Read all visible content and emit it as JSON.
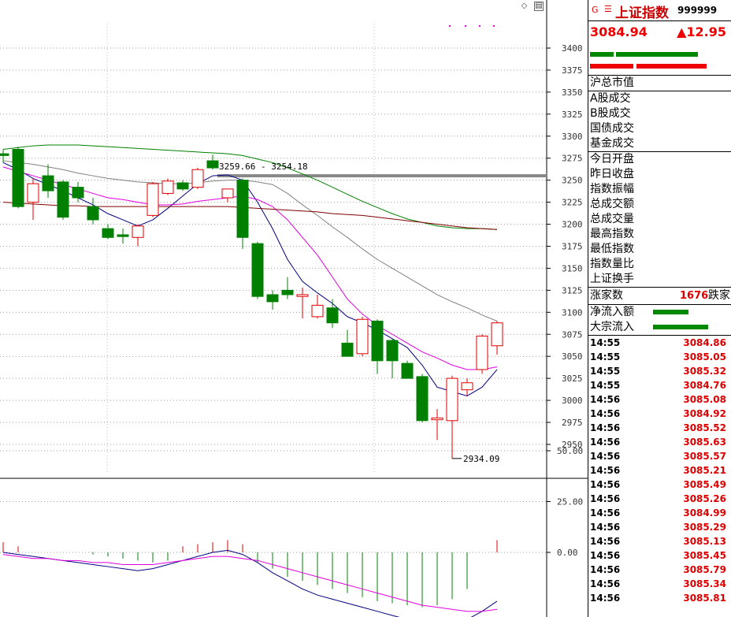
{
  "header": {
    "g_mark": "G",
    "menu_mark": "☰",
    "title": "上证指数",
    "code": "999999"
  },
  "quote": {
    "price": "3084.94",
    "change": "▲12.95"
  },
  "colors": {
    "up": "#e00000",
    "down": "#008000",
    "ma1": "#000080",
    "ma2": "#e000e0",
    "ma3": "#808080",
    "ma4": "#008000",
    "ma5": "#800000"
  },
  "toolbar": {
    "diamond_icon": "diamond-icon",
    "window_icon": "window-icon",
    "diamond_glyph": "◇",
    "window_glyph": "▤"
  },
  "info_groups": [
    [
      "沪总市值"
    ],
    [
      "A股成交",
      "B股成交",
      "国债成交",
      "基金成交"
    ],
    [
      "今日开盘",
      "昨日收盘",
      "指数振幅",
      "总成交额",
      "总成交量",
      "最高指数",
      "最低指数",
      "指数量比",
      "上证换手"
    ]
  ],
  "breadth": {
    "label": "涨家数",
    "value": "1676",
    "suffix": "跌家"
  },
  "flows": [
    {
      "label": "净流入额",
      "level": 0.45
    },
    {
      "label": "大宗流入",
      "level": 0.7
    }
  ],
  "ticks": [
    {
      "time": "14:55",
      "price": "3084.86"
    },
    {
      "time": "14:55",
      "price": "3085.05"
    },
    {
      "time": "14:55",
      "price": "3085.32"
    },
    {
      "time": "14:55",
      "price": "3084.76"
    },
    {
      "time": "14:56",
      "price": "3085.08"
    },
    {
      "time": "14:56",
      "price": "3084.92"
    },
    {
      "time": "14:56",
      "price": "3085.52"
    },
    {
      "time": "14:56",
      "price": "3085.63"
    },
    {
      "time": "14:56",
      "price": "3085.57"
    },
    {
      "time": "14:56",
      "price": "3085.21"
    },
    {
      "time": "14:56",
      "price": "3085.49"
    },
    {
      "time": "14:56",
      "price": "3085.26"
    },
    {
      "time": "14:56",
      "price": "3084.99"
    },
    {
      "time": "14:56",
      "price": "3085.29"
    },
    {
      "time": "14:56",
      "price": "3085.13"
    },
    {
      "time": "14:56",
      "price": "3085.45"
    },
    {
      "time": "14:56",
      "price": "3085.79"
    },
    {
      "time": "14:56",
      "price": "3085.34"
    },
    {
      "time": "14:56",
      "price": "3085.81"
    }
  ],
  "chart_data": {
    "type": "candlestick",
    "y_ticks": [
      "3400",
      "3375",
      "3350",
      "3325",
      "3300",
      "3275",
      "3250",
      "3225",
      "3200",
      "3175",
      "3150",
      "3125",
      "3100",
      "3075",
      "3050",
      "3025",
      "3000",
      "2975",
      "2950"
    ],
    "ylim": [
      2925,
      3412
    ],
    "annotations": {
      "high_range": "3259.66 - 3254.18",
      "low": "2934.09",
      "resistance_level": 3255
    },
    "candles": [
      {
        "o": 3280,
        "h": 3285,
        "l": 3270,
        "c": 3278
      },
      {
        "o": 3285,
        "h": 3288,
        "l": 3218,
        "c": 3220
      },
      {
        "o": 3225,
        "h": 3252,
        "l": 3205,
        "c": 3246
      },
      {
        "o": 3255,
        "h": 3268,
        "l": 3230,
        "c": 3238
      },
      {
        "o": 3248,
        "h": 3250,
        "l": 3205,
        "c": 3208
      },
      {
        "o": 3242,
        "h": 3248,
        "l": 3225,
        "c": 3230
      },
      {
        "o": 3220,
        "h": 3230,
        "l": 3200,
        "c": 3205
      },
      {
        "o": 3195,
        "h": 3200,
        "l": 3183,
        "c": 3185
      },
      {
        "o": 3188,
        "h": 3195,
        "l": 3178,
        "c": 3186
      },
      {
        "o": 3185,
        "h": 3200,
        "l": 3175,
        "c": 3198
      },
      {
        "o": 3210,
        "h": 3248,
        "l": 3208,
        "c": 3246
      },
      {
        "o": 3235,
        "h": 3252,
        "l": 3233,
        "c": 3249
      },
      {
        "o": 3247,
        "h": 3250,
        "l": 3238,
        "c": 3240
      },
      {
        "o": 3242,
        "h": 3264,
        "l": 3240,
        "c": 3262
      },
      {
        "o": 3272,
        "h": 3279,
        "l": 3262,
        "c": 3264
      },
      {
        "o": 3230,
        "h": 3240,
        "l": 3225,
        "c": 3240
      },
      {
        "o": 3250,
        "h": 3252,
        "l": 3172,
        "c": 3185
      },
      {
        "o": 3178,
        "h": 3180,
        "l": 3115,
        "c": 3118
      },
      {
        "o": 3120,
        "h": 3125,
        "l": 3103,
        "c": 3112
      },
      {
        "o": 3125,
        "h": 3140,
        "l": 3115,
        "c": 3120
      },
      {
        "o": 3118,
        "h": 3128,
        "l": 3093,
        "c": 3120
      },
      {
        "o": 3095,
        "h": 3120,
        "l": 3093,
        "c": 3108
      },
      {
        "o": 3105,
        "h": 3115,
        "l": 3082,
        "c": 3088
      },
      {
        "o": 3065,
        "h": 3080,
        "l": 3050,
        "c": 3050
      },
      {
        "o": 3053,
        "h": 3095,
        "l": 3050,
        "c": 3092
      },
      {
        "o": 3090,
        "h": 3092,
        "l": 3030,
        "c": 3045
      },
      {
        "o": 3068,
        "h": 3070,
        "l": 3025,
        "c": 3045
      },
      {
        "o": 3042,
        "h": 3045,
        "l": 3025,
        "c": 3025
      },
      {
        "o": 3027,
        "h": 3030,
        "l": 2975,
        "c": 2977
      },
      {
        "o": 2978,
        "h": 2990,
        "l": 2955,
        "c": 2980
      },
      {
        "o": 2977,
        "h": 3028,
        "l": 2934,
        "c": 3025
      },
      {
        "o": 3012,
        "h": 3025,
        "l": 3005,
        "c": 3020
      },
      {
        "o": 3035,
        "h": 3075,
        "l": 3030,
        "c": 3073
      },
      {
        "o": 3062,
        "h": 3090,
        "l": 3052,
        "c": 3088
      }
    ],
    "ma": [
      {
        "color_key": "ma1",
        "values": [
          3270,
          3262,
          3252,
          3245,
          3238,
          3230,
          3222,
          3212,
          3205,
          3198,
          3205,
          3218,
          3232,
          3246,
          3255,
          3256,
          3250,
          3225,
          3195,
          3160,
          3135,
          3122,
          3110,
          3095,
          3088,
          3080,
          3070,
          3060,
          3040,
          3015,
          3010,
          3005,
          3015,
          3035
        ]
      },
      {
        "color_key": "ma2",
        "values": [
          3265,
          3260,
          3255,
          3250,
          3245,
          3240,
          3235,
          3230,
          3228,
          3225,
          3222,
          3222,
          3223,
          3226,
          3228,
          3230,
          3232,
          3228,
          3220,
          3205,
          3185,
          3165,
          3140,
          3115,
          3098,
          3085,
          3075,
          3065,
          3055,
          3048,
          3040,
          3035,
          3035,
          3038
        ]
      },
      {
        "color_key": "ma3",
        "values": [
          3272,
          3270,
          3268,
          3265,
          3262,
          3258,
          3255,
          3252,
          3250,
          3248,
          3247,
          3246,
          3246,
          3247,
          3249,
          3250,
          3250,
          3248,
          3245,
          3235,
          3222,
          3210,
          3197,
          3185,
          3172,
          3160,
          3150,
          3140,
          3130,
          3120,
          3112,
          3105,
          3097,
          3090
        ]
      },
      {
        "color_key": "ma4",
        "values": [
          3285,
          3287,
          3289,
          3290,
          3290,
          3290,
          3289,
          3288,
          3287,
          3286,
          3285,
          3284,
          3283,
          3282,
          3281,
          3280,
          3278,
          3274,
          3270,
          3264,
          3257,
          3250,
          3242,
          3234,
          3226,
          3219,
          3212,
          3206,
          3202,
          3198,
          3196,
          3195,
          3195,
          3194
        ]
      },
      {
        "color_key": "ma5",
        "values": [
          3225,
          3224,
          3223,
          3222,
          3221,
          3221,
          3220,
          3220,
          3220,
          3220,
          3220,
          3220,
          3220,
          3220,
          3220,
          3220,
          3219,
          3218,
          3217,
          3216,
          3215,
          3214,
          3212,
          3211,
          3210,
          3208,
          3206,
          3204,
          3202,
          3200,
          3198,
          3196,
          3195,
          3194
        ]
      }
    ],
    "indicator": {
      "y_ticks": [
        "50.00",
        "25.00",
        "0.00"
      ],
      "ylim": [
        -30,
        60
      ],
      "histogram": [
        5,
        3,
        0,
        0,
        0,
        0,
        -1,
        -2,
        -3,
        -4,
        -5,
        -4,
        3,
        4,
        5,
        6,
        4,
        -5,
        -8,
        -12,
        -14,
        -16,
        -18,
        -20,
        -22,
        -24,
        -25,
        -26,
        -27,
        -26,
        -23,
        -18,
        0,
        6
      ],
      "line1": [
        0,
        -1,
        -2,
        -3,
        -4,
        -5,
        -6,
        -7,
        -8,
        -9,
        -8,
        -6,
        -4,
        -2,
        0,
        1,
        -1,
        -5,
        -10,
        -14,
        -18,
        -21,
        -23,
        -25,
        -27,
        -29,
        -31,
        -33,
        -35,
        -36,
        -35,
        -33,
        -29,
        -24
      ],
      "line2": [
        -1,
        -2,
        -3,
        -3,
        -4,
        -4,
        -5,
        -5,
        -6,
        -6,
        -6,
        -5,
        -4,
        -3,
        -2,
        -2,
        -3,
        -4,
        -6,
        -8,
        -10,
        -12,
        -14,
        -16,
        -18,
        -20,
        -22,
        -24,
        -26,
        -27,
        -28,
        -29,
        -29,
        -28
      ]
    }
  }
}
